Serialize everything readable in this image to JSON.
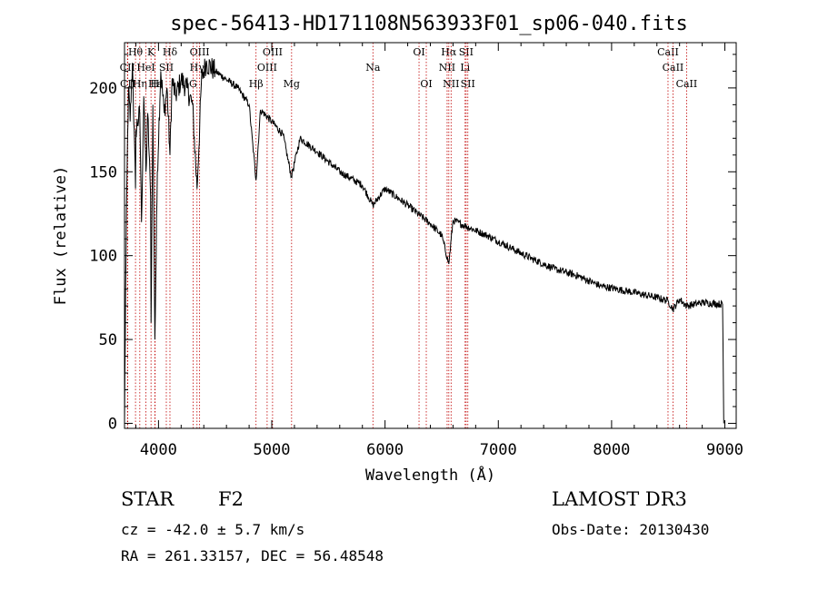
{
  "chart_data": {
    "type": "line",
    "title": "spec-56413-HD171108N563933F01_sp06-040.fits",
    "xlabel": "Wavelength (Å)",
    "ylabel": "Flux (relative)",
    "xlim": [
      3700,
      9100
    ],
    "ylim": [
      -3,
      227
    ],
    "xticks": [
      4000,
      5000,
      6000,
      7000,
      8000,
      9000
    ],
    "yticks": [
      0,
      50,
      100,
      150,
      200
    ],
    "series": [
      {
        "name": "spectrum",
        "x": [
          3700,
          3710,
          3720,
          3735,
          3750,
          3770,
          3797,
          3800,
          3835,
          3850,
          3870,
          3889,
          3905,
          3930,
          3934,
          3950,
          3968,
          3990,
          4020,
          4050,
          4075,
          4101,
          4120,
          4150,
          4200,
          4250,
          4300,
          4340,
          4380,
          4420,
          4500,
          4600,
          4700,
          4800,
          4861,
          4900,
          5000,
          5100,
          5173,
          5250,
          5400,
          5600,
          5800,
          5893,
          6000,
          6200,
          6400,
          6500,
          6563,
          6600,
          6700,
          6900,
          7100,
          7300,
          7500,
          7700,
          7900,
          8200,
          8400,
          8498,
          8542,
          8600,
          8662,
          8800,
          8980,
          8990
        ],
        "y": [
          0,
          80,
          140,
          200,
          180,
          215,
          140,
          175,
          185,
          120,
          195,
          150,
          185,
          135,
          60,
          190,
          50,
          150,
          210,
          185,
          200,
          160,
          205,
          195,
          205,
          200,
          190,
          140,
          205,
          215,
          210,
          205,
          200,
          190,
          145,
          187,
          180,
          172,
          147,
          170,
          162,
          150,
          142,
          130,
          140,
          130,
          119,
          112,
          95,
          121,
          118,
          112,
          105,
          98,
          92,
          88,
          82,
          78,
          75,
          73,
          68,
          74,
          70,
          72,
          71,
          0
        ]
      }
    ],
    "lines": [
      {
        "name": "Hθ",
        "wl": 3797,
        "row": 1
      },
      {
        "name": "CII",
        "wl": 3726,
        "row": 2
      },
      {
        "name": "CII",
        "wl": 3729,
        "row": 3
      },
      {
        "name": "Hη",
        "wl": 3835,
        "row": 3
      },
      {
        "name": "K",
        "wl": 3934,
        "row": 1
      },
      {
        "name": "HeI",
        "wl": 3889,
        "row": 2
      },
      {
        "name": "H",
        "wl": 3968,
        "row": 3
      },
      {
        "name": "Hδ",
        "wl": 4101,
        "row": 1
      },
      {
        "name": "SII",
        "wl": 4069,
        "row": 2
      },
      {
        "name": "Hε",
        "wl": 3970,
        "row": 3
      },
      {
        "name": "OIII",
        "wl": 4363,
        "row": 1
      },
      {
        "name": "Hγ",
        "wl": 4340,
        "row": 2
      },
      {
        "name": "G",
        "wl": 4305,
        "row": 3
      },
      {
        "name": "OIII",
        "wl": 5007,
        "row": 1
      },
      {
        "name": "OIII",
        "wl": 4959,
        "row": 2
      },
      {
        "name": "Hβ",
        "wl": 4861,
        "row": 3
      },
      {
        "name": "Mg",
        "wl": 5175,
        "row": 3
      },
      {
        "name": "Na",
        "wl": 5893,
        "row": 2
      },
      {
        "name": "OI",
        "wl": 6300,
        "row": 1
      },
      {
        "name": "OI",
        "wl": 6364,
        "row": 3
      },
      {
        "name": "Hα",
        "wl": 6563,
        "row": 1
      },
      {
        "name": "NII",
        "wl": 6548,
        "row": 2
      },
      {
        "name": "NII",
        "wl": 6583,
        "row": 3
      },
      {
        "name": "SII",
        "wl": 6716,
        "row": 1
      },
      {
        "name": "Li",
        "wl": 6707,
        "row": 2
      },
      {
        "name": "SII",
        "wl": 6731,
        "row": 3
      },
      {
        "name": "CaII",
        "wl": 8498,
        "row": 1
      },
      {
        "name": "CaII",
        "wl": 8542,
        "row": 2
      },
      {
        "name": "CaII",
        "wl": 8662,
        "row": 3
      }
    ],
    "grid": false
  },
  "info": {
    "object_class": "STAR",
    "subclass": "F2",
    "cz": "cz = -42.0 ± 5.7 km/s",
    "radec": "RA = 261.33157, DEC =  56.48548",
    "survey": "LAMOST DR3",
    "obs_date": "Obs-Date: 20130430"
  }
}
